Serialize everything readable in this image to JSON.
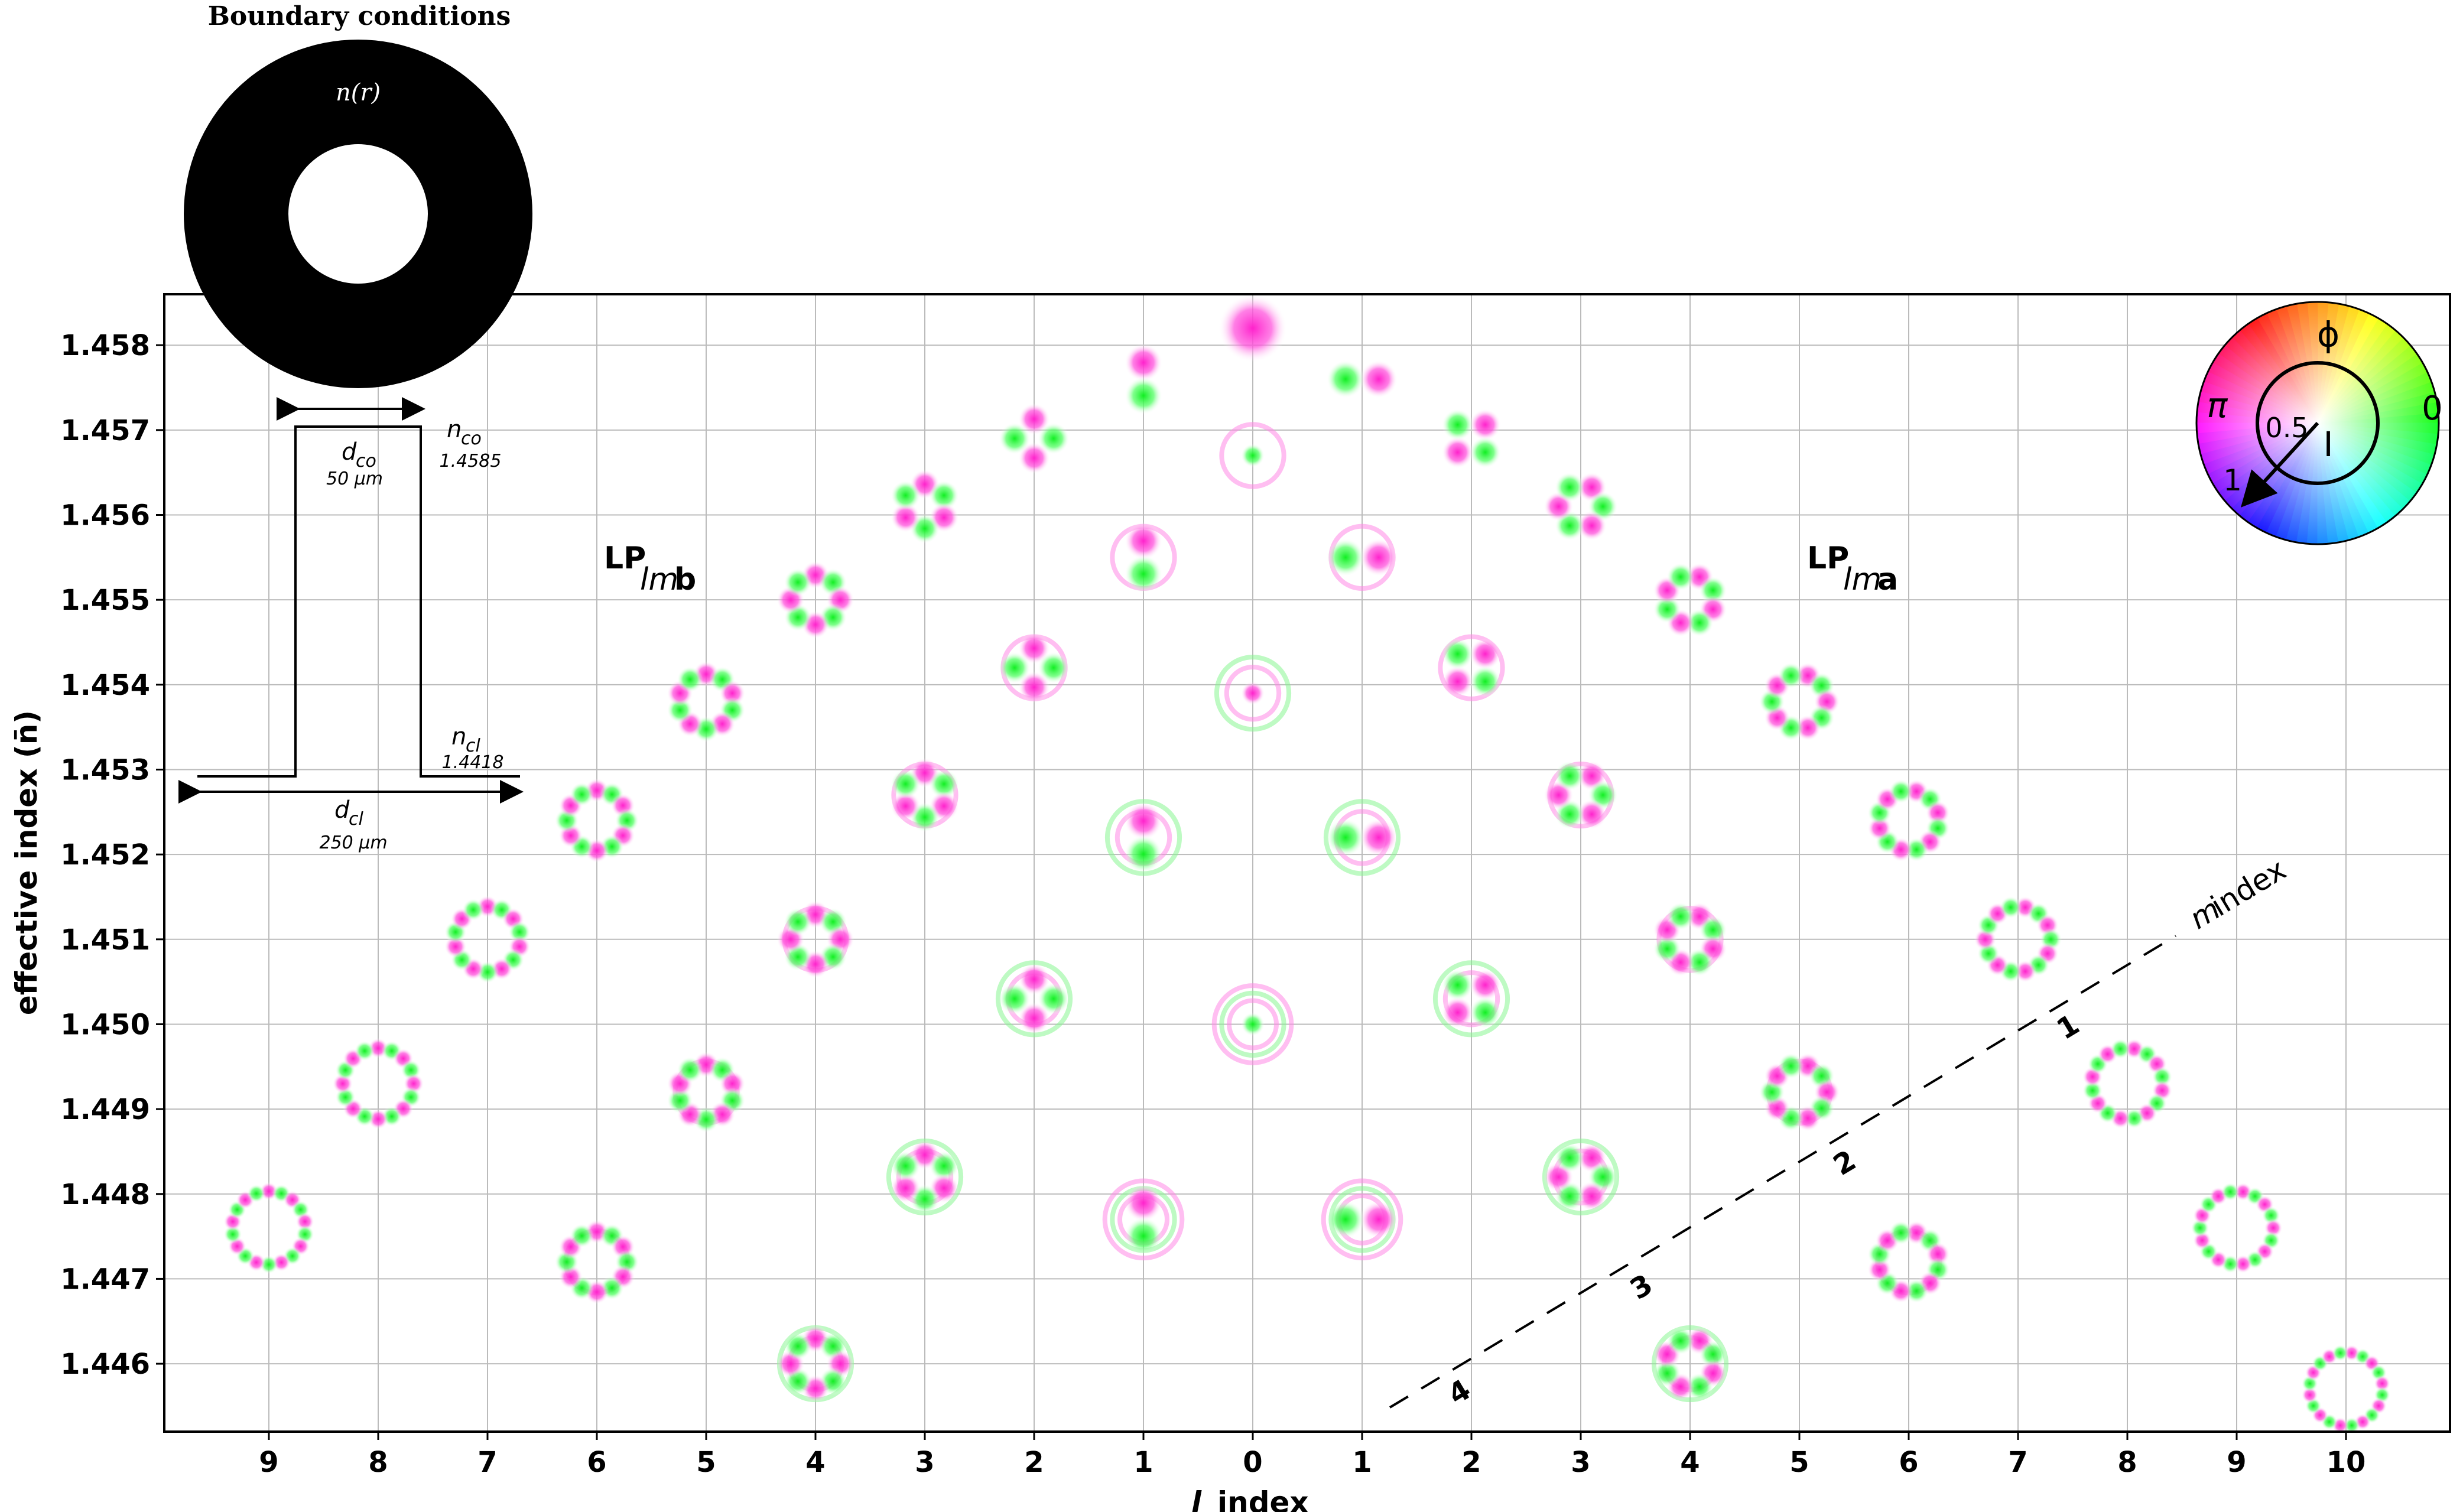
{
  "chart_data": {
    "type": "scatter",
    "title": "",
    "xlabel_italic": "l",
    "xlabel_rest": "index",
    "ylabel": "effective index (n̄)",
    "ylim": [
      1.4452,
      1.4586
    ],
    "yticks": [
      "1.458",
      "1.457",
      "1.456",
      "1.455",
      "1.454",
      "1.453",
      "1.452",
      "1.451",
      "1.450",
      "1.449",
      "1.448",
      "1.447",
      "1.446"
    ],
    "xtick_labels": [
      "9",
      "8",
      "7",
      "6",
      "5",
      "4",
      "3",
      "2",
      "1",
      "0",
      "1",
      "2",
      "3",
      "4",
      "5",
      "6",
      "7",
      "8",
      "9",
      "10"
    ],
    "grid": true,
    "group_b_label": {
      "main": "LP",
      "sub": "lm",
      "suffix": "b"
    },
    "group_a_label": {
      "main": "LP",
      "sub": "lm",
      "suffix": "a"
    },
    "modes": [
      {
        "l": 0,
        "m": 1,
        "branch": "0",
        "neff": 1.4582
      },
      {
        "l": 0,
        "m": 2,
        "branch": "0",
        "neff": 1.4567
      },
      {
        "l": 0,
        "m": 3,
        "branch": "0",
        "neff": 1.4539
      },
      {
        "l": 0,
        "m": 4,
        "branch": "0",
        "neff": 1.45
      },
      {
        "l": 1,
        "m": 1,
        "branch": "b",
        "neff": 1.4576
      },
      {
        "l": 1,
        "m": 2,
        "branch": "b",
        "neff": 1.4555
      },
      {
        "l": 1,
        "m": 3,
        "branch": "b",
        "neff": 1.4522
      },
      {
        "l": 1,
        "m": 4,
        "branch": "b",
        "neff": 1.4477
      },
      {
        "l": 1,
        "m": 1,
        "branch": "a",
        "neff": 1.4576
      },
      {
        "l": 1,
        "m": 2,
        "branch": "a",
        "neff": 1.4555
      },
      {
        "l": 1,
        "m": 3,
        "branch": "a",
        "neff": 1.4522
      },
      {
        "l": 1,
        "m": 4,
        "branch": "a",
        "neff": 1.4477
      },
      {
        "l": 2,
        "m": 1,
        "branch": "b",
        "neff": 1.4569
      },
      {
        "l": 2,
        "m": 2,
        "branch": "b",
        "neff": 1.4542
      },
      {
        "l": 2,
        "m": 3,
        "branch": "b",
        "neff": 1.4503
      },
      {
        "l": 2,
        "m": 1,
        "branch": "a",
        "neff": 1.4569
      },
      {
        "l": 2,
        "m": 2,
        "branch": "a",
        "neff": 1.4542
      },
      {
        "l": 2,
        "m": 3,
        "branch": "a",
        "neff": 1.4503
      },
      {
        "l": 3,
        "m": 1,
        "branch": "b",
        "neff": 1.4561
      },
      {
        "l": 3,
        "m": 2,
        "branch": "b",
        "neff": 1.4527
      },
      {
        "l": 3,
        "m": 3,
        "branch": "b",
        "neff": 1.4482
      },
      {
        "l": 3,
        "m": 1,
        "branch": "a",
        "neff": 1.4561
      },
      {
        "l": 3,
        "m": 2,
        "branch": "a",
        "neff": 1.4527
      },
      {
        "l": 3,
        "m": 3,
        "branch": "a",
        "neff": 1.4482
      },
      {
        "l": 4,
        "m": 1,
        "branch": "b",
        "neff": 1.455
      },
      {
        "l": 4,
        "m": 2,
        "branch": "b",
        "neff": 1.451
      },
      {
        "l": 4,
        "m": 3,
        "branch": "b",
        "neff": 1.446
      },
      {
        "l": 4,
        "m": 1,
        "branch": "a",
        "neff": 1.455
      },
      {
        "l": 4,
        "m": 2,
        "branch": "a",
        "neff": 1.451
      },
      {
        "l": 4,
        "m": 3,
        "branch": "a",
        "neff": 1.446
      },
      {
        "l": 5,
        "m": 1,
        "branch": "b",
        "neff": 1.4538
      },
      {
        "l": 5,
        "m": 2,
        "branch": "b",
        "neff": 1.4492
      },
      {
        "l": 5,
        "m": 1,
        "branch": "a",
        "neff": 1.4538
      },
      {
        "l": 5,
        "m": 2,
        "branch": "a",
        "neff": 1.4492
      },
      {
        "l": 6,
        "m": 1,
        "branch": "b",
        "neff": 1.4524
      },
      {
        "l": 6,
        "m": 2,
        "branch": "b",
        "neff": 1.4472
      },
      {
        "l": 6,
        "m": 1,
        "branch": "a",
        "neff": 1.4524
      },
      {
        "l": 6,
        "m": 2,
        "branch": "a",
        "neff": 1.4472
      },
      {
        "l": 7,
        "m": 1,
        "branch": "b",
        "neff": 1.451
      },
      {
        "l": 7,
        "m": 1,
        "branch": "a",
        "neff": 1.451
      },
      {
        "l": 8,
        "m": 1,
        "branch": "b",
        "neff": 1.4493
      },
      {
        "l": 8,
        "m": 1,
        "branch": "a",
        "neff": 1.4493
      },
      {
        "l": 9,
        "m": 1,
        "branch": "b",
        "neff": 1.4476
      },
      {
        "l": 9,
        "m": 1,
        "branch": "a",
        "neff": 1.4476
      },
      {
        "l": 10,
        "m": 1,
        "branch": "a",
        "neff": 1.4457
      }
    ],
    "m_axis": {
      "label_italic": "m",
      "label_rest": "index",
      "ticks": [
        "1",
        "2",
        "3",
        "4"
      ]
    },
    "colors": {
      "positive": "#ff33cc",
      "negative": "#22ee33",
      "grid": "#bbbbbb",
      "axis": "#000000"
    }
  },
  "boundary": {
    "title": "Boundary conditions",
    "index_label": "n(r)"
  },
  "profile": {
    "d_co": "d",
    "d_co_sub": "co",
    "d_co_value": "50 μm",
    "n_co": "n",
    "n_co_sub": "co",
    "n_co_value": "1.4585",
    "n_cl": "n",
    "n_cl_sub": "cl",
    "n_cl_value": "1.4418",
    "d_cl": "d",
    "d_cl_sub": "cl",
    "d_cl_value": "250 μm"
  },
  "colorwheel": {
    "phi": "ϕ",
    "pi": "π",
    "zero": "0",
    "half": "0.5",
    "one": "1",
    "abs": "I"
  }
}
